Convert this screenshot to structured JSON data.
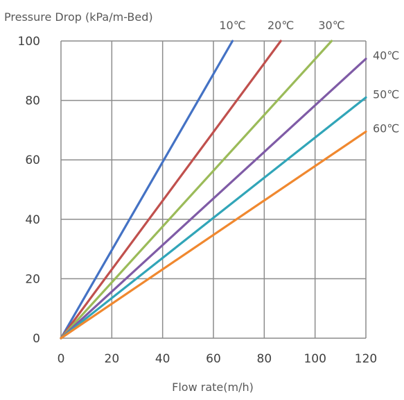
{
  "chart_data": {
    "type": "line",
    "ylabel": "Pressure Drop (kPa/m-Bed)",
    "xlabel": "Flow rate(m/h)",
    "xlim": [
      0,
      120
    ],
    "ylim": [
      0,
      100
    ],
    "xticks": [
      "0",
      "20",
      "40",
      "60",
      "80",
      "100",
      "120"
    ],
    "yticks": [
      "0",
      "20",
      "40",
      "60",
      "80",
      "100"
    ],
    "grid": true,
    "series": [
      {
        "name": "10℃",
        "color": "#4472C4",
        "x": [
          0,
          67.5
        ],
        "y": [
          0,
          100
        ]
      },
      {
        "name": "20℃",
        "color": "#C0504D",
        "x": [
          0,
          86.5
        ],
        "y": [
          0,
          100
        ]
      },
      {
        "name": "30℃",
        "color": "#9BBB59",
        "x": [
          0,
          106.5
        ],
        "y": [
          0,
          100
        ]
      },
      {
        "name": "40℃",
        "color": "#7F5BA6",
        "x": [
          0,
          120
        ],
        "y": [
          0,
          94
        ]
      },
      {
        "name": "50℃",
        "color": "#31A5B8",
        "x": [
          0,
          120
        ],
        "y": [
          0,
          81
        ]
      },
      {
        "name": "60℃",
        "color": "#F0882F",
        "x": [
          0,
          120
        ],
        "y": [
          0,
          69.5
        ]
      }
    ]
  }
}
